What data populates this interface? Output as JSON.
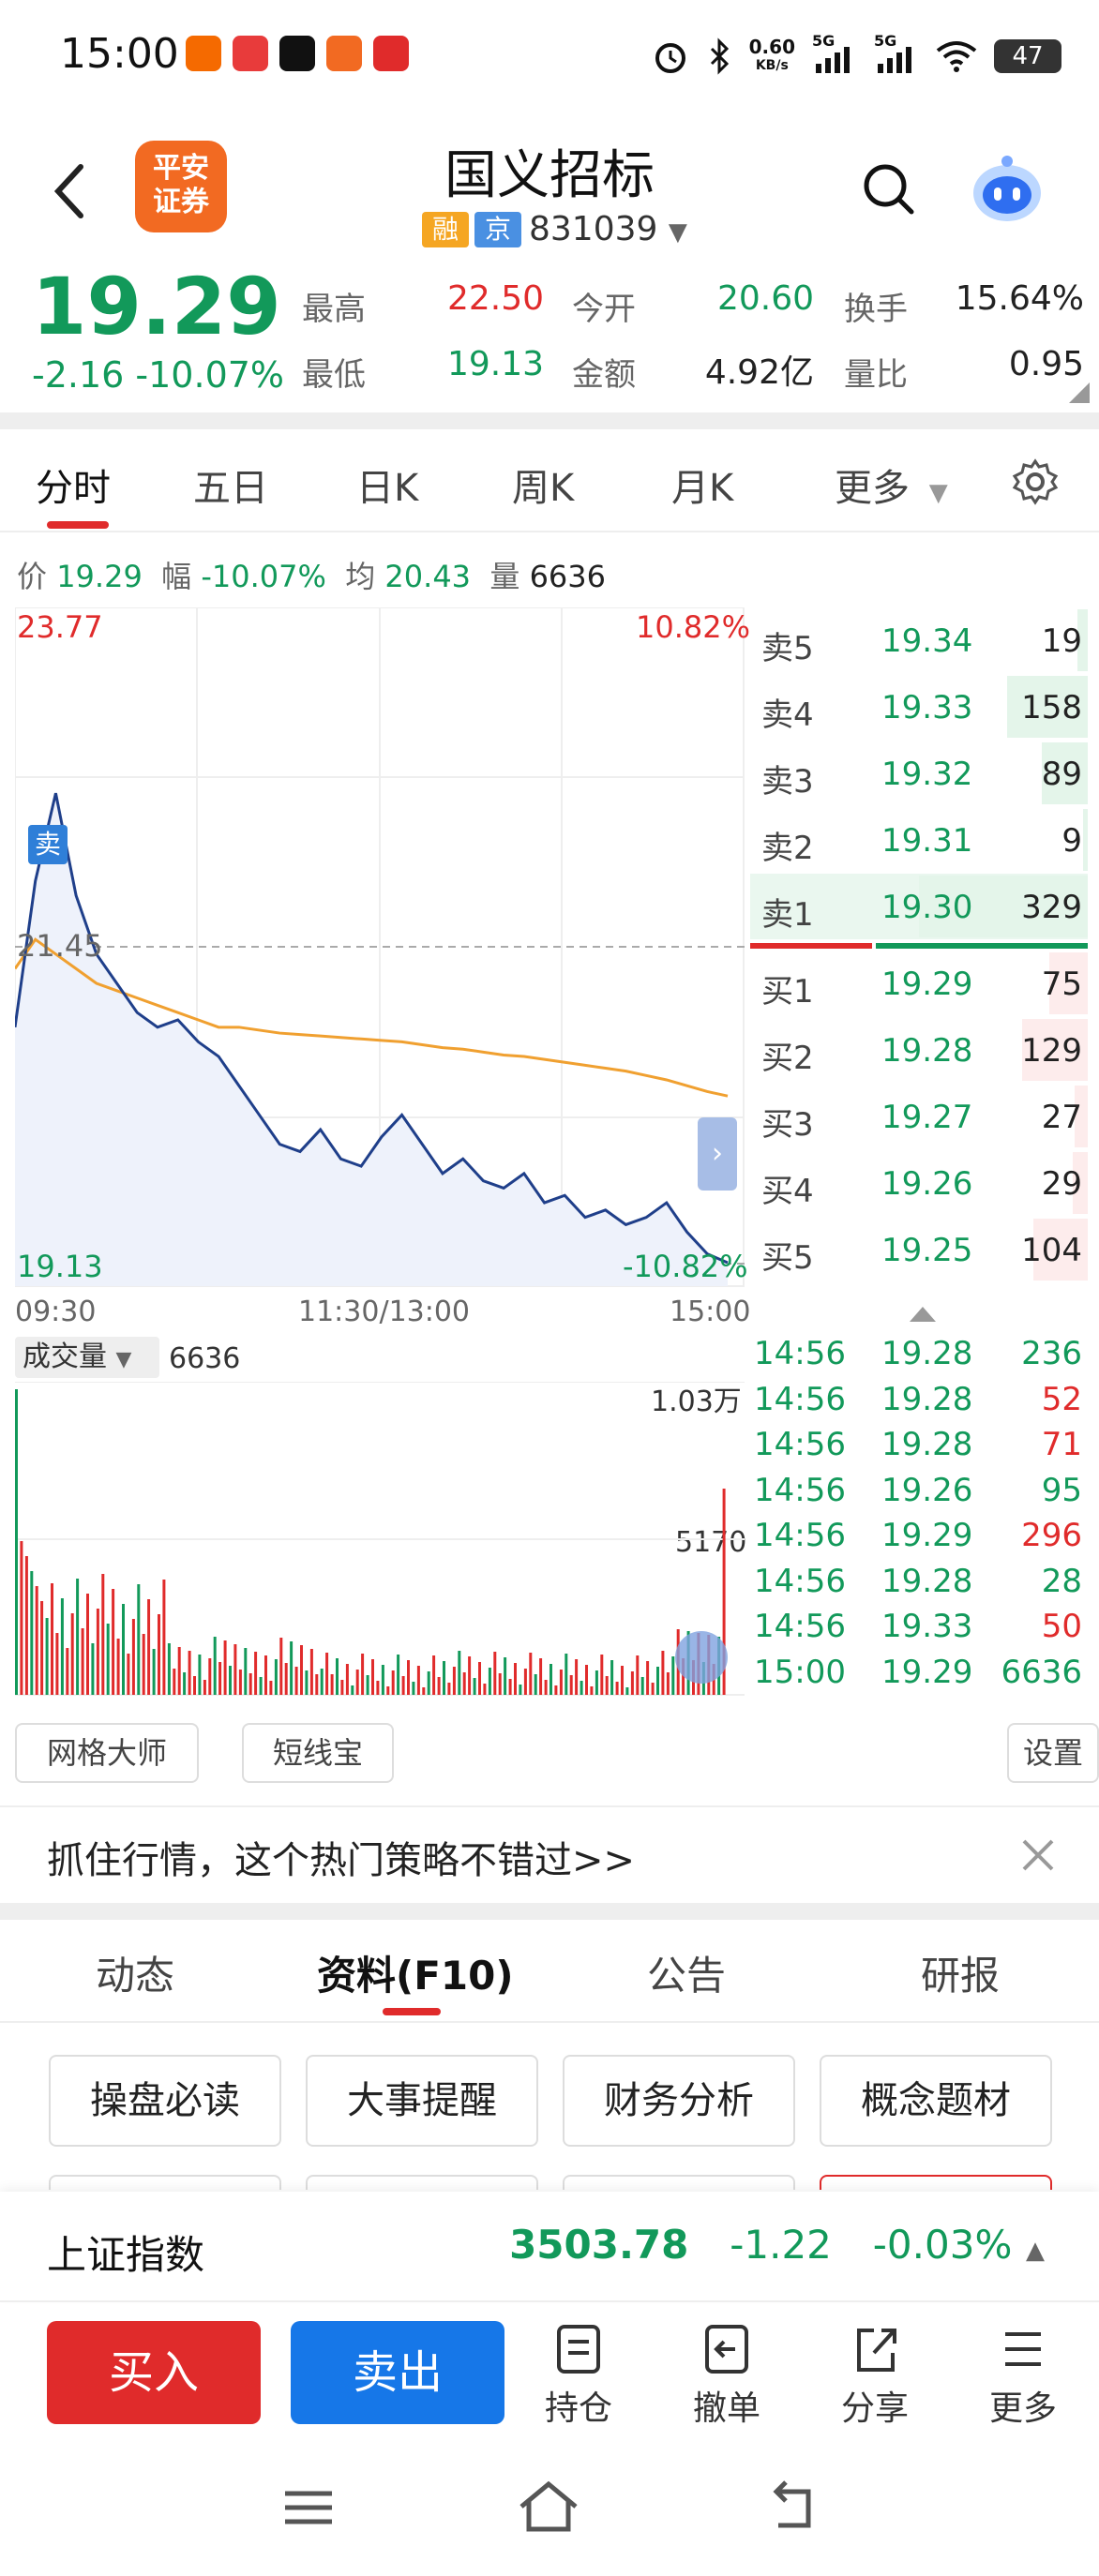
{
  "status_bar": {
    "time": "15:00",
    "net_speed_top": "0.60",
    "net_speed_bottom": "KB/s",
    "signal1": "5G",
    "signal2": "5G",
    "battery": "47"
  },
  "header": {
    "logo_line1": "平安",
    "logo_line2": "证券",
    "stock_name": "国义招标",
    "tag_rong": "融",
    "tag_jing": "京",
    "stock_code": "831039"
  },
  "quote": {
    "price": "19.29",
    "change": "-2.16",
    "change_pct": "-10.07%",
    "high_label": "最高",
    "high": "22.50",
    "open_label": "今开",
    "open": "20.60",
    "turnover_label": "换手",
    "turnover": "15.64%",
    "low_label": "最低",
    "low": "19.13",
    "amount_label": "金额",
    "amount": "4.92亿",
    "vol_ratio_label": "量比",
    "vol_ratio": "0.95"
  },
  "tabs": [
    {
      "label": "分时"
    },
    {
      "label": "五日"
    },
    {
      "label": "日K"
    },
    {
      "label": "周K"
    },
    {
      "label": "月K"
    },
    {
      "label": "更多"
    }
  ],
  "info_line": {
    "price_label": "价",
    "price": "19.29",
    "range_label": "幅",
    "range": "-10.07%",
    "avg_label": "均",
    "avg": "20.43",
    "vol_label": "量",
    "vol": "6636"
  },
  "chart": {
    "top_price": "23.77",
    "top_pct": "10.82%",
    "mid_price": "21.45",
    "bottom_price": "19.13",
    "bottom_pct": "-10.82%",
    "sell_marker": "卖",
    "time_start": "09:30",
    "time_mid": "11:30/13:00",
    "time_end": "15:00",
    "volume_label": "成交量",
    "volume_value": "6636",
    "volume_max": "1.03万",
    "volume_mid": "5170",
    "colors": {
      "price_line": "#1f3f8a",
      "avg_line": "#f0a030",
      "up": "#e02b2b",
      "down": "#12995a"
    }
  },
  "chart_data": {
    "type": "line",
    "title": "",
    "x_range": [
      "09:30",
      "15:00"
    ],
    "ylim": [
      19.13,
      23.77
    ],
    "series": [
      {
        "name": "价",
        "values": [
          20.9,
          21.9,
          22.5,
          21.8,
          21.4,
          21.2,
          21.0,
          20.9,
          20.95,
          20.8,
          20.7,
          20.5,
          20.3,
          20.1,
          20.05,
          20.2,
          20.0,
          19.95,
          20.15,
          20.3,
          20.1,
          19.9,
          20.0,
          19.85,
          19.8,
          19.9,
          19.7,
          19.75,
          19.6,
          19.65,
          19.55,
          19.6,
          19.7,
          19.5,
          19.35,
          19.29
        ]
      },
      {
        "name": "均",
        "values": [
          21.3,
          21.5,
          21.4,
          21.3,
          21.2,
          21.15,
          21.1,
          21.05,
          21.0,
          20.95,
          20.9,
          20.9,
          20.88,
          20.86,
          20.85,
          20.84,
          20.83,
          20.82,
          20.81,
          20.8,
          20.78,
          20.76,
          20.75,
          20.73,
          20.71,
          20.7,
          20.68,
          20.66,
          20.64,
          20.62,
          20.6,
          20.57,
          20.54,
          20.5,
          20.46,
          20.43
        ]
      }
    ]
  },
  "order_book": {
    "asks": [
      {
        "label": "卖5",
        "price": "19.34",
        "vol": "19",
        "frac": 0.06
      },
      {
        "label": "卖4",
        "price": "19.33",
        "vol": "158",
        "frac": 0.48
      },
      {
        "label": "卖3",
        "price": "19.32",
        "vol": "89",
        "frac": 0.27
      },
      {
        "label": "卖2",
        "price": "19.31",
        "vol": "9",
        "frac": 0.03
      },
      {
        "label": "卖1",
        "price": "19.30",
        "vol": "329",
        "frac": 1.0
      }
    ],
    "bids": [
      {
        "label": "买1",
        "price": "19.29",
        "vol": "75",
        "frac": 0.23
      },
      {
        "label": "买2",
        "price": "19.28",
        "vol": "129",
        "frac": 0.39
      },
      {
        "label": "买3",
        "price": "19.27",
        "vol": "27",
        "frac": 0.08
      },
      {
        "label": "买4",
        "price": "19.26",
        "vol": "29",
        "frac": 0.09
      },
      {
        "label": "买5",
        "price": "19.25",
        "vol": "104",
        "frac": 0.32
      }
    ]
  },
  "trades": [
    {
      "time": "14:56",
      "price": "19.28",
      "vol": "236",
      "dir": "down"
    },
    {
      "time": "14:56",
      "price": "19.28",
      "vol": "52",
      "dir": "up"
    },
    {
      "time": "14:56",
      "price": "19.28",
      "vol": "71",
      "dir": "up"
    },
    {
      "time": "14:56",
      "price": "19.26",
      "vol": "95",
      "dir": "down"
    },
    {
      "time": "14:56",
      "price": "19.29",
      "vol": "296",
      "dir": "up"
    },
    {
      "time": "14:56",
      "price": "19.28",
      "vol": "28",
      "dir": "down"
    },
    {
      "time": "14:56",
      "price": "19.33",
      "vol": "50",
      "dir": "up"
    },
    {
      "time": "15:00",
      "price": "19.29",
      "vol": "6636",
      "dir": "down"
    }
  ],
  "tools": {
    "grid_master": "网格大师",
    "short_line": "短线宝",
    "settings": "设置"
  },
  "promo": {
    "text": "抓住行情，这个热门策略不错过>>"
  },
  "section_tabs": [
    {
      "label": "动态"
    },
    {
      "label": "资料(F10)"
    },
    {
      "label": "公告"
    },
    {
      "label": "研报"
    }
  ],
  "f10_buttons": [
    {
      "label": "操盘必读"
    },
    {
      "label": "大事提醒"
    },
    {
      "label": "财务分析"
    },
    {
      "label": "概念题材"
    }
  ],
  "index_bar": {
    "name": "上证指数",
    "value": "3503.78",
    "change": "-1.22",
    "change_pct": "-0.03%"
  },
  "actions": {
    "buy": "买入",
    "sell": "卖出",
    "holdings": "持仓",
    "cancel": "撤单",
    "share": "分享",
    "more": "更多"
  }
}
